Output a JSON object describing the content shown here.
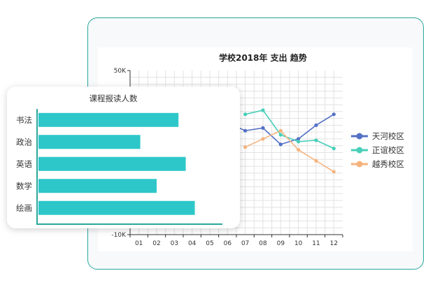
{
  "chart_data": [
    {
      "type": "line",
      "title": "学校2018年 支出 趋势",
      "categories": [
        "01",
        "02",
        "03",
        "04",
        "05",
        "06",
        "07",
        "08",
        "09",
        "10",
        "11",
        "12"
      ],
      "y_tick_labels": [
        "50K",
        "-10K"
      ],
      "ylim": [
        -10,
        50
      ],
      "grid": true,
      "legend": "right",
      "series": [
        {
          "name": "天河校区",
          "color": "#5470c6",
          "values": [
            null,
            null,
            null,
            null,
            null,
            31,
            28,
            29,
            23,
            25,
            30,
            34
          ]
        },
        {
          "name": "正谊校区",
          "color": "#48cfb9",
          "values": [
            null,
            null,
            null,
            null,
            null,
            null,
            34,
            35.5,
            26.5,
            24,
            24.5,
            21.5
          ]
        },
        {
          "name": "越秀校区",
          "color": "#f5b47e",
          "values": [
            null,
            null,
            null,
            null,
            null,
            null,
            22,
            25,
            28,
            21,
            17,
            13
          ]
        }
      ]
    },
    {
      "type": "bar",
      "orientation": "horizontal",
      "title": "课程报读人数",
      "categories": [
        "书法",
        "政治",
        "英语",
        "数学",
        "绘画"
      ],
      "values": [
        77,
        56,
        81,
        65,
        86
      ],
      "xlim": [
        0,
        100
      ],
      "colors": {
        "bar": "#2ec7c9",
        "axis": "#2aa79b"
      }
    }
  ]
}
